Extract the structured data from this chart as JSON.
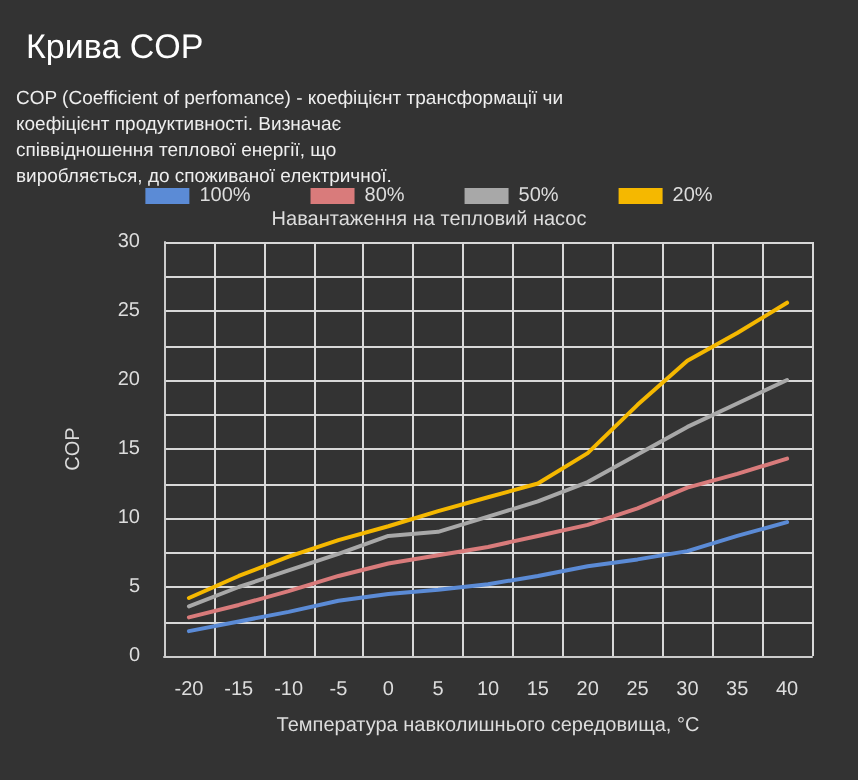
{
  "chart_data": {
    "type": "line",
    "title": "Крива COP",
    "subtitle": "COP (Coefficient of perfomance) - коефіцієнт трансформації чи коефіцієнт продуктивності. Визначає співвідношення теплової енергії, що виробляється, до споживаної електричної.",
    "legend_title": "Навантаження на тепловий насос",
    "xlabel": "Температура навколишнього середовища, °C",
    "ylabel": "COP",
    "categories": [
      "-20",
      "-15",
      "-10",
      "-5",
      "0",
      "5",
      "10",
      "15",
      "20",
      "25",
      "30",
      "35",
      "40"
    ],
    "series": [
      {
        "name": "100%",
        "color": "#5b8bd6",
        "values": [
          1.8,
          2.5,
          3.2,
          4.0,
          4.5,
          4.8,
          5.2,
          5.8,
          6.5,
          7.0,
          7.6,
          8.7,
          9.7
        ]
      },
      {
        "name": "80%",
        "color": "#d97b7b",
        "values": [
          2.8,
          3.7,
          4.7,
          5.8,
          6.7,
          7.3,
          7.9,
          8.7,
          9.5,
          10.7,
          12.2,
          13.2,
          14.3
        ]
      },
      {
        "name": "50%",
        "color": "#a8a8a8",
        "values": [
          3.6,
          5.0,
          6.2,
          7.4,
          8.7,
          9.0,
          10.1,
          11.2,
          12.6,
          14.6,
          16.6,
          18.3,
          20.0
        ]
      },
      {
        "name": "20%",
        "color": "#f5b800",
        "values": [
          4.2,
          5.8,
          7.2,
          8.4,
          9.4,
          10.5,
          11.5,
          12.5,
          14.7,
          18.2,
          21.4,
          23.4,
          25.6
        ]
      }
    ],
    "ylim": [
      0,
      30
    ],
    "yticks": [
      0,
      {
        "value": 2.5,
        "label": null
      },
      5,
      {
        "value": 7.5,
        "label": null
      },
      10,
      {
        "value": 12.5,
        "label": null
      },
      15,
      {
        "value": 17.5,
        "label": null
      },
      20,
      {
        "value": 22.5,
        "label": null
      },
      25,
      {
        "value": 27.5,
        "label": null
      },
      30
    ],
    "grid": true,
    "legend": "top",
    "marker": "none",
    "line_style": "solid"
  }
}
